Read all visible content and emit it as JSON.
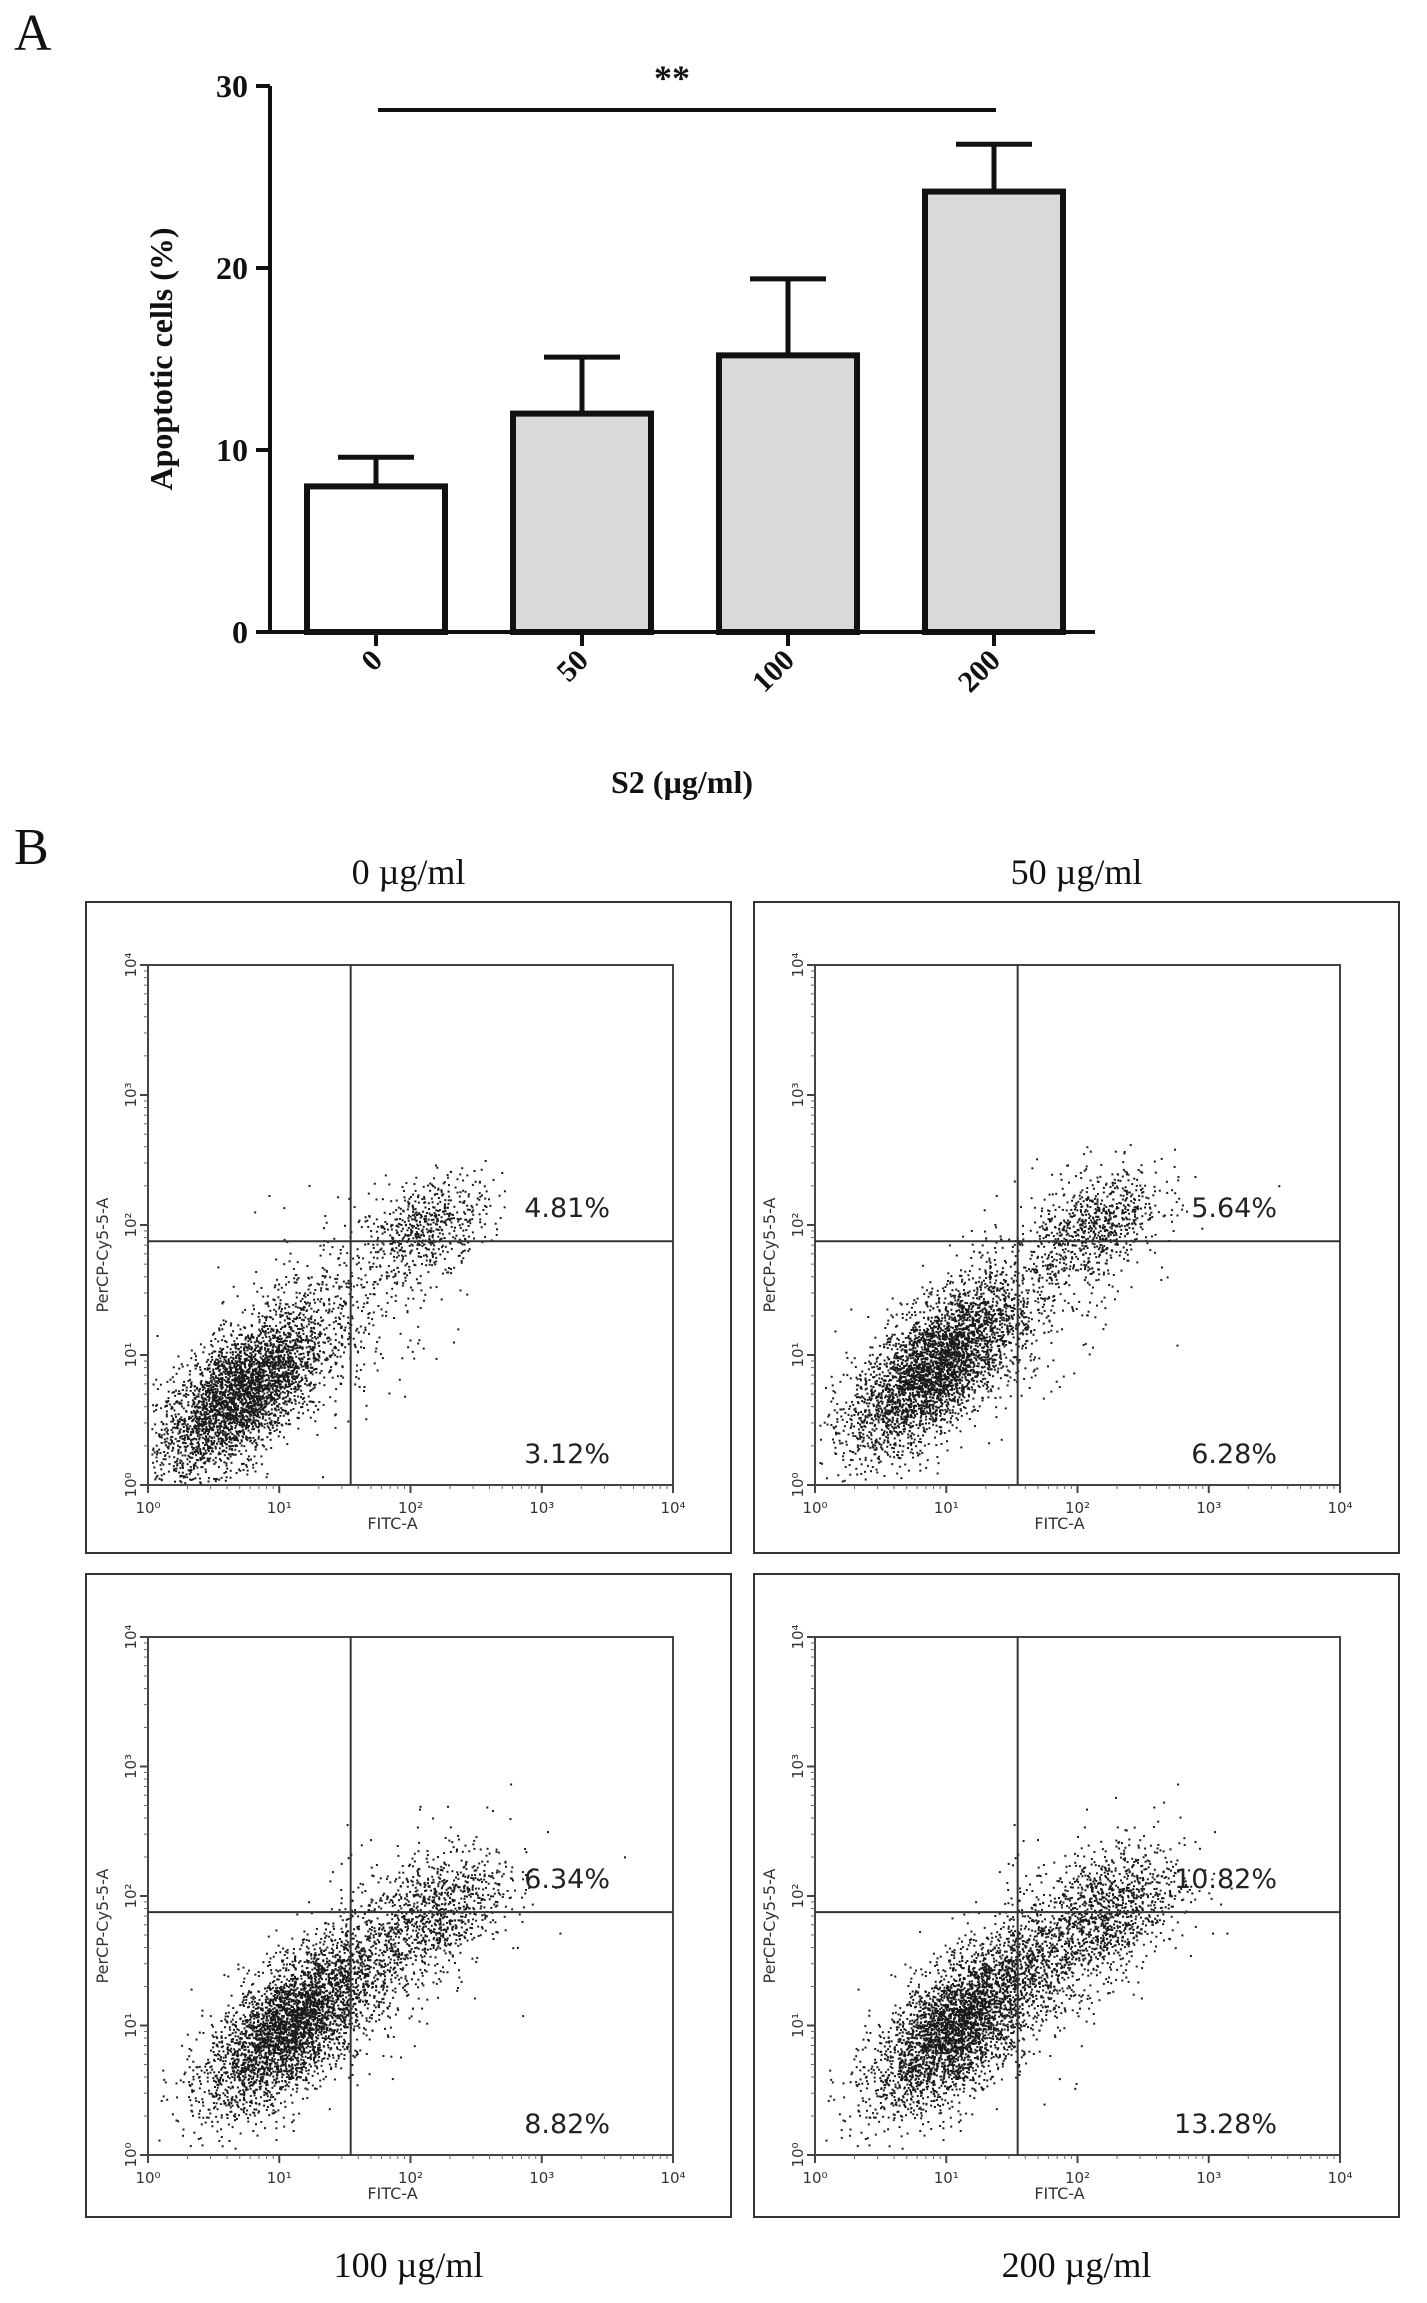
{
  "panel_a": {
    "letter": "A"
  },
  "panel_b": {
    "letter": "B",
    "titles": [
      "0 µg/ml",
      "50 µg/ml",
      "100 µg/ml",
      "200 µg/ml"
    ]
  },
  "chart_data": [
    {
      "type": "bar",
      "title": "",
      "xlabel": "S2 (µg/ml)",
      "ylabel": "Apoptotic cells (%)",
      "categories": [
        "0",
        "50",
        "100",
        "200"
      ],
      "values": [
        8.0,
        12.0,
        15.2,
        24.2
      ],
      "error_upper": [
        1.6,
        3.1,
        4.2,
        2.6
      ],
      "ylim": [
        0,
        30
      ],
      "yticks": [
        0,
        10,
        20,
        30
      ],
      "significance": {
        "label": "**",
        "from": "0",
        "to": "200"
      },
      "fill_colors": [
        "#ffffff",
        "#d9d9d9",
        "#d9d9d9",
        "#d9d9d9"
      ]
    },
    {
      "type": "scatter",
      "title": "0 µg/ml",
      "xlabel": "FITC-A",
      "ylabel": "PerCP-Cy5-5-A",
      "axis_scale": "log",
      "xlim": [
        1,
        10000
      ],
      "ylim": [
        1,
        10000
      ],
      "tick_labels": [
        "10⁰",
        "10¹",
        "10²",
        "10³",
        "10⁴"
      ],
      "quadrant_gate": {
        "x": 35,
        "y": 75
      },
      "quadrant_percentages": {
        "upper_right": "4.81%",
        "lower_right": "3.12%"
      },
      "clusters": [
        {
          "cx": 5,
          "cy": 5,
          "sx": 0.32,
          "sy": 0.32,
          "rho": 0.65,
          "n": 3400
        },
        {
          "cx": 140,
          "cy": 100,
          "sx": 0.22,
          "sy": 0.18,
          "rho": 0.4,
          "n": 500
        },
        {
          "cx": 30,
          "cy": 25,
          "sx": 0.45,
          "sy": 0.45,
          "rho": 0.55,
          "n": 500
        }
      ]
    },
    {
      "type": "scatter",
      "title": "50 µg/ml",
      "xlabel": "FITC-A",
      "ylabel": "PerCP-Cy5-5-A",
      "axis_scale": "log",
      "xlim": [
        1,
        10000
      ],
      "ylim": [
        1,
        10000
      ],
      "tick_labels": [
        "10⁰",
        "10¹",
        "10²",
        "10³",
        "10⁴"
      ],
      "quadrant_gate": {
        "x": 35,
        "y": 75
      },
      "quadrant_percentages": {
        "upper_right": "5.64%",
        "lower_right": "6.28%"
      },
      "clusters": [
        {
          "cx": 8,
          "cy": 8,
          "sx": 0.32,
          "sy": 0.32,
          "rho": 0.65,
          "n": 3400
        },
        {
          "cx": 140,
          "cy": 100,
          "sx": 0.25,
          "sy": 0.2,
          "rho": 0.45,
          "n": 650
        },
        {
          "cx": 40,
          "cy": 30,
          "sx": 0.45,
          "sy": 0.45,
          "rho": 0.6,
          "n": 550
        }
      ]
    },
    {
      "type": "scatter",
      "title": "100 µg/ml",
      "xlabel": "FITC-A",
      "ylabel": "PerCP-Cy5-5-A",
      "axis_scale": "log",
      "xlim": [
        1,
        10000
      ],
      "ylim": [
        1,
        10000
      ],
      "tick_labels": [
        "10⁰",
        "10¹",
        "10²",
        "10³",
        "10⁴"
      ],
      "quadrant_gate": {
        "x": 35,
        "y": 75
      },
      "quadrant_percentages": {
        "upper_right": "6.34%",
        "lower_right": "8.82%"
      },
      "clusters": [
        {
          "cx": 12,
          "cy": 10,
          "sx": 0.32,
          "sy": 0.32,
          "rho": 0.65,
          "n": 3400
        },
        {
          "cx": 150,
          "cy": 75,
          "sx": 0.28,
          "sy": 0.25,
          "rho": 0.5,
          "n": 800
        },
        {
          "cx": 50,
          "cy": 30,
          "sx": 0.45,
          "sy": 0.45,
          "rho": 0.6,
          "n": 600
        }
      ]
    },
    {
      "type": "scatter",
      "title": "200 µg/ml",
      "xlabel": "FITC-A",
      "ylabel": "PerCP-Cy5-5-A",
      "axis_scale": "log",
      "xlim": [
        1,
        10000
      ],
      "ylim": [
        1,
        10000
      ],
      "tick_labels": [
        "10⁰",
        "10¹",
        "10²",
        "10³",
        "10⁴"
      ],
      "quadrant_gate": {
        "x": 35,
        "y": 75
      },
      "quadrant_percentages": {
        "upper_right": "10.82%",
        "lower_right": "13.28%"
      },
      "clusters": [
        {
          "cx": 12,
          "cy": 10,
          "sx": 0.32,
          "sy": 0.32,
          "rho": 0.65,
          "n": 3200
        },
        {
          "cx": 150,
          "cy": 70,
          "sx": 0.3,
          "sy": 0.28,
          "rho": 0.5,
          "n": 1100
        },
        {
          "cx": 50,
          "cy": 30,
          "sx": 0.45,
          "sy": 0.45,
          "rho": 0.6,
          "n": 700
        }
      ]
    }
  ]
}
